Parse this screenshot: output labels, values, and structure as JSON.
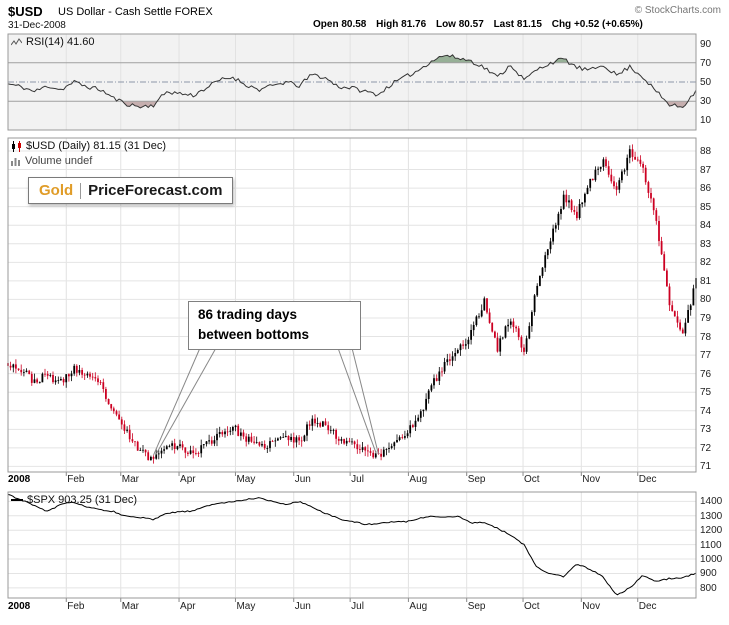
{
  "header": {
    "symbol": "$USD",
    "description": "US Dollar - Cash Settle FOREX",
    "source": "© StockCharts.com",
    "date": "31-Dec-2008",
    "quote": [
      {
        "label": "Open",
        "value": "80.58"
      },
      {
        "label": "High",
        "value": "81.76"
      },
      {
        "label": "Low",
        "value": "80.57"
      },
      {
        "label": "Last",
        "value": "81.15"
      },
      {
        "label": "Chg",
        "value": "+0.52 (+0.65%)"
      }
    ]
  },
  "panels": {
    "rsi": {
      "label": "RSI(14) 41.60",
      "axis": [
        90,
        70,
        50,
        30,
        10
      ]
    },
    "price": {
      "label": "$USD (Daily) 81.15 (31 Dec)",
      "volume_label": "Volume undef",
      "axis": [
        88,
        87,
        86,
        85,
        84,
        83,
        82,
        81,
        80,
        79,
        78,
        77,
        76,
        75,
        74,
        73,
        72,
        71
      ]
    },
    "spx": {
      "label": "$SPX 903.25 (31 Dec)",
      "axis": [
        1400,
        1300,
        1200,
        1100,
        1000,
        900,
        800
      ]
    }
  },
  "logo": {
    "gold": "Gold",
    "rest": "PriceForecast.com"
  },
  "annotation": {
    "line1": "86 trading days",
    "line2": "between bottoms"
  },
  "x_axis": {
    "year": "2008",
    "months": [
      "Feb",
      "Mar",
      "Apr",
      "May",
      "Jun",
      "Jul",
      "Aug",
      "Sep",
      "Oct",
      "Nov",
      "Dec"
    ]
  },
  "chart_data": [
    {
      "type": "line",
      "name": "RSI(14)",
      "panel": "rsi",
      "x": "weekly, Jan-Dec 2008",
      "ylim": [
        0,
        100
      ],
      "thresholds": {
        "overbought": 70,
        "mid": 50,
        "oversold": 30
      },
      "legend": "RSI(14) 41.60",
      "last": 41.6,
      "values": [
        48,
        45,
        40,
        46,
        42,
        50,
        45,
        42,
        33,
        27,
        24,
        26,
        40,
        38,
        36,
        44,
        52,
        55,
        47,
        42,
        46,
        50,
        46,
        58,
        54,
        45,
        44,
        40,
        37,
        48,
        55,
        62,
        72,
        78,
        75,
        72,
        65,
        55,
        68,
        52,
        63,
        70,
        74,
        65,
        62,
        68,
        57,
        66,
        55,
        40,
        26,
        24,
        41.6
      ]
    },
    {
      "type": "candlestick",
      "name": "$USD Daily 2008",
      "panel": "price",
      "x": "weekly closes, Jan-Dec 2008 (daily candles drawn between anchors)",
      "ylim": [
        70.7,
        88.7
      ],
      "open": 80.58,
      "high": 81.76,
      "low": 80.57,
      "last": 81.15,
      "weekly_closes": [
        76.6,
        76.2,
        75.6,
        75.9,
        75.5,
        76.3,
        75.8,
        75.4,
        73.8,
        72.8,
        71.8,
        71.4,
        72.3,
        72.0,
        71.7,
        72.2,
        72.8,
        73.1,
        72.5,
        72.0,
        72.3,
        72.6,
        72.3,
        73.6,
        73.2,
        72.5,
        72.3,
        71.9,
        71.5,
        72.2,
        72.8,
        73.5,
        75.3,
        76.5,
        77.2,
        78.2,
        79.9,
        77.4,
        79.0,
        77.2,
        80.8,
        83.2,
        85.5,
        84.6,
        86.3,
        87.6,
        85.9,
        87.9,
        87.0,
        84.2,
        79.8,
        78.0,
        81.15
      ],
      "annotation": {
        "text": "86 trading days between bottoms",
        "bottom1_week": 11,
        "bottom1_value": 71.45,
        "bottom2_week": 28,
        "bottom2_value": 71.5
      }
    },
    {
      "type": "line",
      "name": "$SPX",
      "panel": "spx",
      "x": "weekly, Jan-Dec 2008",
      "ylim": [
        730,
        1465
      ],
      "legend": "$SPX 903.25 (31 Dec)",
      "last": 903.25,
      "values": [
        1447,
        1411,
        1370,
        1330,
        1378,
        1395,
        1360,
        1340,
        1330,
        1293,
        1288,
        1273,
        1316,
        1329,
        1332,
        1370,
        1388,
        1397,
        1413,
        1426,
        1400,
        1376,
        1400,
        1360,
        1318,
        1280,
        1262,
        1239,
        1245,
        1260,
        1257,
        1282,
        1296,
        1292,
        1298,
        1251,
        1255,
        1213,
        1166,
        1099,
        940,
        899,
        876,
        968,
        930,
        873,
        750,
        800,
        887,
        845,
        865,
        870,
        903.25
      ]
    }
  ]
}
